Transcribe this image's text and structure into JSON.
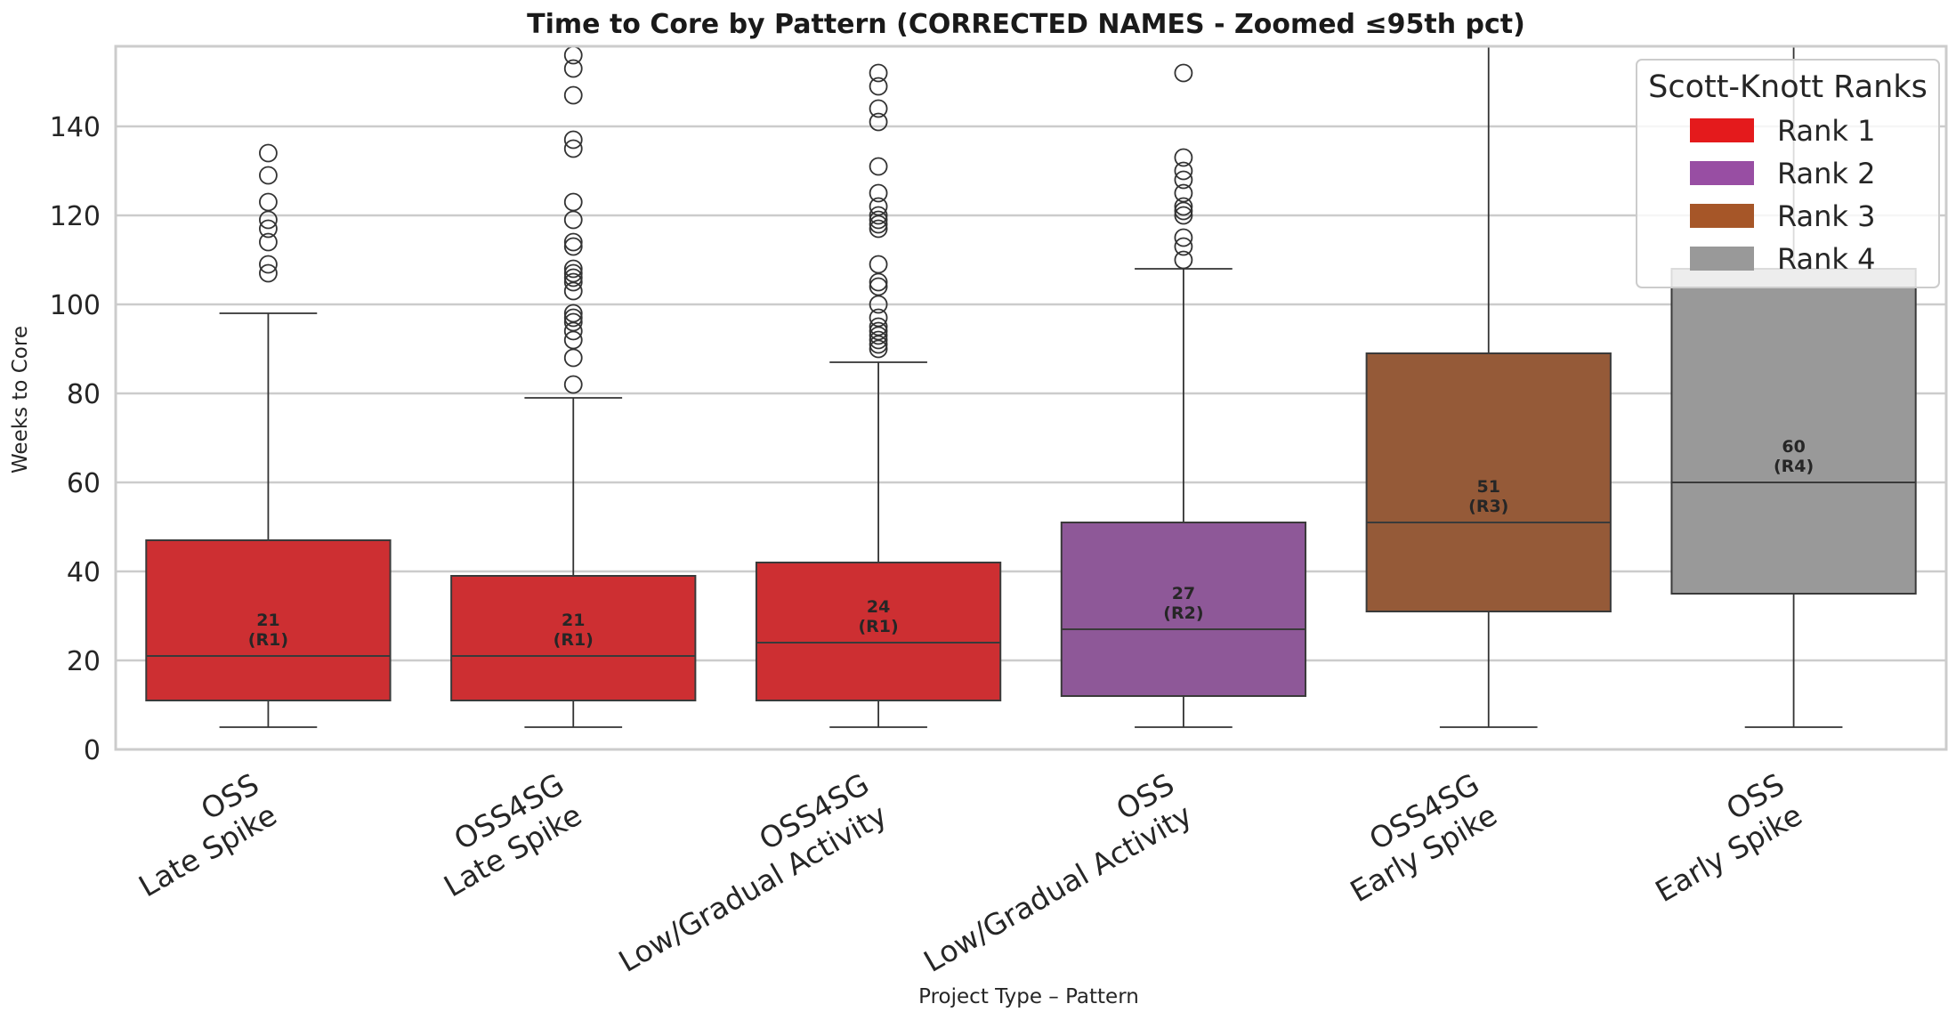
{
  "chart_data": {
    "type": "box",
    "title": "Time to Core by Pattern (CORRECTED NAMES - Zoomed ≤95th pct)",
    "xlabel": "Project Type – Pattern",
    "ylabel": "Weeks to Core",
    "ylim": [
      0,
      158
    ],
    "yticks": [
      0,
      20,
      40,
      60,
      80,
      100,
      120,
      140
    ],
    "grid": true,
    "legend": {
      "title": "Scott-Knott Ranks",
      "placement": "top-right",
      "entries": [
        {
          "label": "Rank 1",
          "color": "#e41a1c"
        },
        {
          "label": "Rank 2",
          "color": "#984ea3"
        },
        {
          "label": "Rank 3",
          "color": "#a65628"
        },
        {
          "label": "Rank 4",
          "color": "#999999"
        }
      ]
    },
    "box_fill_colors": {
      "1": "#cd2f32",
      "2": "#8e5898",
      "3": "#955a38",
      "4": "#999999"
    },
    "categories": [
      {
        "line1": "OSS",
        "line2": "Late Spike",
        "rank": 1,
        "median": 21,
        "q1": 11,
        "q3": 47,
        "whisker_low": 5,
        "whisker_high": 98,
        "median_label": "21",
        "rank_label": "(R1)",
        "outliers": [
          107,
          109,
          114,
          117,
          119,
          123,
          129,
          134
        ]
      },
      {
        "line1": "OSS4SG",
        "line2": "Late Spike",
        "rank": 1,
        "median": 21,
        "q1": 11,
        "q3": 39,
        "whisker_low": 5,
        "whisker_high": 79,
        "median_label": "21",
        "rank_label": "(R1)",
        "outliers": [
          82,
          88,
          92,
          94,
          96,
          97,
          98,
          103,
          105,
          106,
          107,
          108,
          113,
          114,
          119,
          123,
          135,
          137,
          147,
          153,
          156
        ]
      },
      {
        "line1": "OSS4SG",
        "line2": "Low/Gradual Activity",
        "rank": 1,
        "median": 24,
        "q1": 11,
        "q3": 42,
        "whisker_low": 5,
        "whisker_high": 87,
        "median_label": "24",
        "rank_label": "(R1)",
        "outliers": [
          90,
          91,
          92,
          93,
          94,
          95,
          97,
          100,
          104,
          105,
          109,
          117,
          118,
          119,
          120,
          122,
          125,
          131,
          141,
          144,
          149,
          152
        ]
      },
      {
        "line1": "OSS",
        "line2": "Low/Gradual Activity",
        "rank": 2,
        "median": 27,
        "q1": 12,
        "q3": 51,
        "whisker_low": 5,
        "whisker_high": 108,
        "median_label": "27",
        "rank_label": "(R2)",
        "outliers": [
          110,
          113,
          115,
          120,
          121,
          122,
          125,
          128,
          130,
          133,
          152
        ]
      },
      {
        "line1": "OSS4SG",
        "line2": "Early Spike",
        "rank": 3,
        "median": 51,
        "q1": 31,
        "q3": 89,
        "whisker_low": 5,
        "whisker_high": 158,
        "median_label": "51",
        "rank_label": "(R3)",
        "outliers": []
      },
      {
        "line1": "OSS",
        "line2": "Early Spike",
        "rank": 4,
        "median": 60,
        "q1": 35,
        "q3": 108,
        "whisker_low": 5,
        "whisker_high": 158,
        "median_label": "60",
        "rank_label": "(R4)",
        "outliers": []
      }
    ]
  }
}
